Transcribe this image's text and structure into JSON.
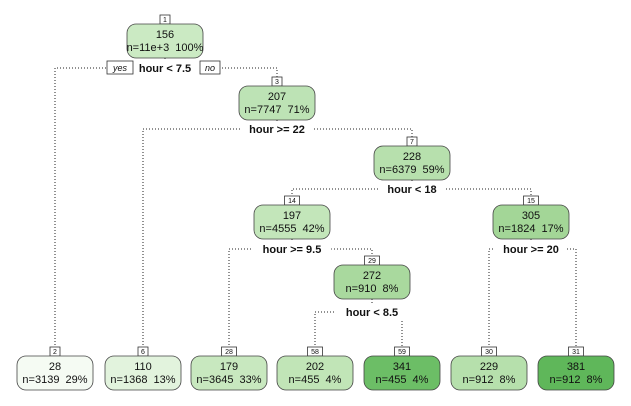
{
  "tree": {
    "nodes": [
      {
        "id": "1",
        "value": "156",
        "stats": "n=11e+3  100%",
        "fill": "#cbeac3"
      },
      {
        "id": "3",
        "value": "207",
        "stats": "n=7747  71%",
        "fill": "#bde3b5"
      },
      {
        "id": "7",
        "value": "228",
        "stats": "n=6379  59%",
        "fill": "#b7e0ad"
      },
      {
        "id": "14",
        "value": "197",
        "stats": "n=4555  42%",
        "fill": "#c3e6ba"
      },
      {
        "id": "15",
        "value": "305",
        "stats": "n=1824  17%",
        "fill": "#a3d697"
      },
      {
        "id": "29",
        "value": "272",
        "stats": "n=910  8%",
        "fill": "#a9d99e"
      },
      {
        "id": "2",
        "value": "28",
        "stats": "n=3139  29%",
        "fill": "#f5fbf3"
      },
      {
        "id": "6",
        "value": "110",
        "stats": "n=1368  13%",
        "fill": "#e2f3dd"
      },
      {
        "id": "28",
        "value": "179",
        "stats": "n=3645  33%",
        "fill": "#c8e8bf"
      },
      {
        "id": "58",
        "value": "202",
        "stats": "n=455  4%",
        "fill": "#c1e5b7"
      },
      {
        "id": "59",
        "value": "341",
        "stats": "n=455  4%",
        "fill": "#6cbe66"
      },
      {
        "id": "30",
        "value": "229",
        "stats": "n=912  8%",
        "fill": "#b6e0ac"
      },
      {
        "id": "31",
        "value": "381",
        "stats": "n=912  8%",
        "fill": "#5fb75a"
      }
    ],
    "splits": [
      {
        "node": "1",
        "rule": "hour < 7.5"
      },
      {
        "node": "3",
        "rule": "hour >= 22"
      },
      {
        "node": "7",
        "rule": "hour < 18"
      },
      {
        "node": "14",
        "rule": "hour >= 9.5"
      },
      {
        "node": "15",
        "rule": "hour >= 20"
      },
      {
        "node": "29",
        "rule": "hour < 8.5"
      }
    ],
    "branch_labels": {
      "yes": "yes",
      "no": "no"
    }
  }
}
